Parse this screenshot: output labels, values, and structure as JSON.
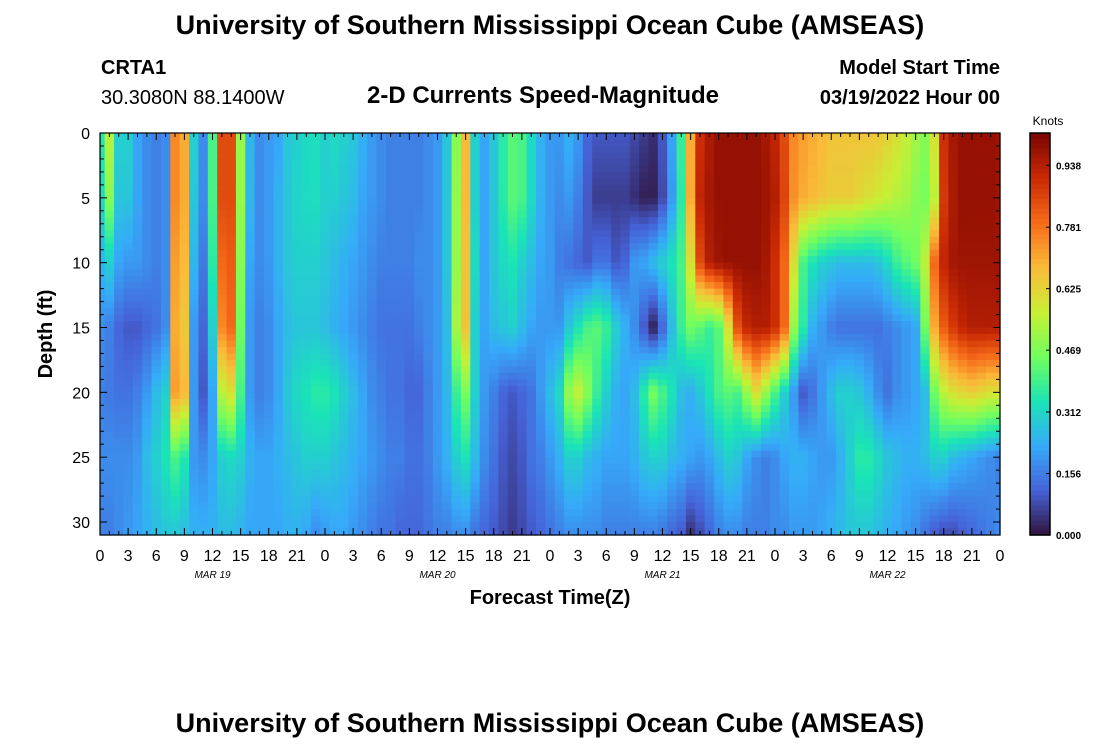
{
  "page": {
    "title": "University of Southern Mississippi Ocean Cube (AMSEAS)",
    "title_repeat": "University of Southern Mississippi Ocean Cube (AMSEAS)"
  },
  "header": {
    "station": "CRTA1",
    "coords": "30.3080N  88.1400W",
    "subtitle": "2-D Currents Speed-Magnitude",
    "model_start_label": "Model Start Time",
    "model_start_time": "03/19/2022 Hour 00"
  },
  "colors": {
    "scale": [
      "#30123b",
      "#4662d7",
      "#36aaf9",
      "#1ae4b6",
      "#72fe5e",
      "#c8ef34",
      "#faba39",
      "#f66b19",
      "#ca2a04",
      "#7a0403"
    ]
  },
  "chart_data": {
    "type": "heatmap",
    "title": "2-D Currents Speed-Magnitude",
    "xlabel": "Forecast Time(Z)",
    "ylabel": "Depth (ft)",
    "x_hours_range": [
      0,
      96
    ],
    "ylim": [
      0,
      31
    ],
    "x_tick_labels": [
      "0",
      "3",
      "6",
      "9",
      "12",
      "15",
      "18",
      "21",
      "0",
      "3",
      "6",
      "9",
      "12",
      "15",
      "18",
      "21",
      "0",
      "3",
      "6",
      "9",
      "12",
      "15",
      "18",
      "21",
      "0",
      "3",
      "6",
      "9",
      "12",
      "15",
      "18",
      "21",
      "0"
    ],
    "y_ticks": [
      0,
      5,
      10,
      15,
      20,
      25,
      30
    ],
    "y_tick_labels": [
      "0",
      "5",
      "10",
      "15",
      "20",
      "25",
      "30"
    ],
    "day_labels": [
      {
        "hour": 12,
        "label": "MAR 19"
      },
      {
        "hour": 36,
        "label": "MAR 20"
      },
      {
        "hour": 60,
        "label": "MAR 21"
      },
      {
        "hour": 84,
        "label": "MAR 22"
      }
    ],
    "colorbar": {
      "unit": "Knots",
      "range": [
        0.0,
        1.02
      ],
      "tick_values": [
        0.0,
        0.156,
        0.312,
        0.469,
        0.625,
        0.781,
        0.938
      ],
      "tick_labels": [
        "0.000",
        "0.156",
        "0.312",
        "0.469",
        "0.625",
        "0.781",
        "0.938"
      ]
    },
    "depths": [
      0,
      5,
      10,
      15,
      20,
      25,
      31
    ],
    "hours": [
      0,
      1,
      2,
      3,
      4,
      5,
      6,
      7,
      8,
      9,
      10,
      11,
      12,
      13,
      14,
      15,
      16,
      17,
      18,
      19,
      20,
      21,
      22,
      23,
      24,
      25,
      26,
      27,
      28,
      29,
      30,
      31,
      32,
      33,
      34,
      35,
      36,
      37,
      38,
      39,
      40,
      41,
      42,
      43,
      44,
      45,
      46,
      47,
      48,
      49,
      50,
      51,
      52,
      53,
      54,
      55,
      56,
      57,
      58,
      59,
      60,
      61,
      62,
      63,
      64,
      65,
      66,
      67,
      68,
      69,
      70,
      71,
      72,
      73,
      74,
      75,
      76,
      77,
      78,
      79,
      80,
      81,
      82,
      83,
      84,
      85,
      86,
      87,
      88,
      89,
      90,
      91,
      92,
      93,
      94,
      95,
      96
    ],
    "values": [
      [
        0.36,
        0.55,
        0.3,
        0.3,
        0.22,
        0.18,
        0.16,
        0.18,
        0.75,
        0.7,
        0.3,
        0.18,
        0.4,
        0.85,
        0.85,
        0.5,
        0.25,
        0.18,
        0.2,
        0.22,
        0.28,
        0.3,
        0.32,
        0.33,
        0.3,
        0.32,
        0.3,
        0.28,
        0.24,
        0.2,
        0.18,
        0.16,
        0.16,
        0.16,
        0.16,
        0.18,
        0.2,
        0.28,
        0.48,
        0.68,
        0.3,
        0.22,
        0.28,
        0.36,
        0.42,
        0.4,
        0.32,
        0.24,
        0.2,
        0.2,
        0.24,
        0.2,
        0.12,
        0.1,
        0.1,
        0.1,
        0.1,
        0.08,
        0.06,
        0.04,
        0.1,
        0.22,
        0.38,
        0.7,
        0.9,
        0.95,
        0.98,
        0.98,
        0.98,
        0.98,
        0.98,
        0.96,
        0.92,
        0.85,
        0.75,
        0.72,
        0.7,
        0.68,
        0.66,
        0.66,
        0.66,
        0.66,
        0.66,
        0.65,
        0.63,
        0.6,
        0.56,
        0.52,
        0.48,
        0.6,
        0.9,
        0.96,
        0.98,
        0.98,
        0.98,
        0.98,
        0.97
      ],
      [
        0.32,
        0.48,
        0.28,
        0.28,
        0.22,
        0.18,
        0.16,
        0.18,
        0.75,
        0.7,
        0.28,
        0.18,
        0.4,
        0.85,
        0.85,
        0.5,
        0.25,
        0.18,
        0.2,
        0.24,
        0.28,
        0.31,
        0.32,
        0.33,
        0.3,
        0.3,
        0.28,
        0.26,
        0.22,
        0.2,
        0.18,
        0.16,
        0.16,
        0.16,
        0.16,
        0.18,
        0.2,
        0.28,
        0.5,
        0.68,
        0.3,
        0.22,
        0.28,
        0.36,
        0.42,
        0.4,
        0.32,
        0.24,
        0.2,
        0.18,
        0.2,
        0.16,
        0.1,
        0.06,
        0.06,
        0.06,
        0.06,
        0.04,
        0.02,
        0.02,
        0.08,
        0.2,
        0.36,
        0.7,
        0.92,
        0.96,
        0.98,
        0.98,
        0.98,
        0.98,
        0.98,
        0.97,
        0.94,
        0.86,
        0.74,
        0.7,
        0.68,
        0.66,
        0.64,
        0.64,
        0.64,
        0.62,
        0.6,
        0.58,
        0.56,
        0.54,
        0.52,
        0.48,
        0.46,
        0.55,
        0.88,
        0.95,
        0.98,
        0.98,
        0.98,
        0.98,
        0.97
      ],
      [
        0.25,
        0.3,
        0.22,
        0.2,
        0.2,
        0.18,
        0.16,
        0.18,
        0.72,
        0.68,
        0.25,
        0.15,
        0.36,
        0.8,
        0.82,
        0.48,
        0.22,
        0.18,
        0.2,
        0.24,
        0.28,
        0.3,
        0.3,
        0.3,
        0.28,
        0.26,
        0.24,
        0.22,
        0.2,
        0.18,
        0.16,
        0.16,
        0.16,
        0.16,
        0.18,
        0.18,
        0.2,
        0.28,
        0.5,
        0.66,
        0.32,
        0.22,
        0.28,
        0.32,
        0.34,
        0.3,
        0.26,
        0.22,
        0.2,
        0.16,
        0.14,
        0.12,
        0.1,
        0.14,
        0.14,
        0.1,
        0.12,
        0.2,
        0.22,
        0.26,
        0.3,
        0.34,
        0.4,
        0.6,
        0.85,
        0.94,
        0.97,
        0.98,
        0.98,
        0.98,
        0.98,
        0.96,
        0.9,
        0.8,
        0.6,
        0.4,
        0.34,
        0.3,
        0.28,
        0.26,
        0.26,
        0.26,
        0.26,
        0.28,
        0.32,
        0.38,
        0.42,
        0.45,
        0.55,
        0.8,
        0.92,
        0.96,
        0.97,
        0.97,
        0.97,
        0.97,
        0.97
      ],
      [
        0.18,
        0.16,
        0.12,
        0.1,
        0.1,
        0.12,
        0.14,
        0.18,
        0.7,
        0.65,
        0.2,
        0.12,
        0.3,
        0.75,
        0.8,
        0.45,
        0.2,
        0.16,
        0.18,
        0.22,
        0.26,
        0.28,
        0.28,
        0.28,
        0.26,
        0.24,
        0.22,
        0.2,
        0.18,
        0.16,
        0.14,
        0.14,
        0.14,
        0.14,
        0.16,
        0.18,
        0.2,
        0.26,
        0.52,
        0.66,
        0.3,
        0.22,
        0.26,
        0.28,
        0.3,
        0.26,
        0.22,
        0.2,
        0.2,
        0.2,
        0.28,
        0.34,
        0.4,
        0.42,
        0.38,
        0.3,
        0.24,
        0.18,
        0.1,
        0.02,
        0.12,
        0.26,
        0.38,
        0.45,
        0.42,
        0.38,
        0.42,
        0.6,
        0.84,
        0.92,
        0.94,
        0.94,
        0.9,
        0.8,
        0.5,
        0.36,
        0.24,
        0.2,
        0.16,
        0.14,
        0.14,
        0.14,
        0.14,
        0.14,
        0.16,
        0.18,
        0.2,
        0.22,
        0.45,
        0.7,
        0.82,
        0.88,
        0.92,
        0.94,
        0.94,
        0.94,
        0.94
      ],
      [
        0.16,
        0.15,
        0.14,
        0.14,
        0.16,
        0.2,
        0.26,
        0.3,
        0.72,
        0.68,
        0.2,
        0.1,
        0.22,
        0.55,
        0.6,
        0.4,
        0.2,
        0.16,
        0.18,
        0.22,
        0.28,
        0.32,
        0.34,
        0.36,
        0.36,
        0.34,
        0.3,
        0.26,
        0.22,
        0.18,
        0.16,
        0.14,
        0.14,
        0.12,
        0.12,
        0.16,
        0.2,
        0.25,
        0.38,
        0.46,
        0.3,
        0.2,
        0.16,
        0.12,
        0.1,
        0.12,
        0.14,
        0.2,
        0.26,
        0.32,
        0.5,
        0.56,
        0.48,
        0.38,
        0.3,
        0.24,
        0.22,
        0.26,
        0.36,
        0.46,
        0.4,
        0.34,
        0.26,
        0.24,
        0.28,
        0.34,
        0.4,
        0.42,
        0.4,
        0.5,
        0.6,
        0.5,
        0.4,
        0.3,
        0.2,
        0.1,
        0.14,
        0.2,
        0.26,
        0.3,
        0.3,
        0.28,
        0.24,
        0.18,
        0.14,
        0.18,
        0.2,
        0.22,
        0.26,
        0.45,
        0.55,
        0.6,
        0.62,
        0.64,
        0.62,
        0.6,
        0.6
      ],
      [
        0.18,
        0.18,
        0.18,
        0.18,
        0.2,
        0.26,
        0.3,
        0.34,
        0.4,
        0.35,
        0.2,
        0.18,
        0.22,
        0.3,
        0.32,
        0.3,
        0.24,
        0.22,
        0.22,
        0.24,
        0.26,
        0.28,
        0.3,
        0.3,
        0.3,
        0.28,
        0.26,
        0.24,
        0.22,
        0.2,
        0.18,
        0.16,
        0.16,
        0.14,
        0.14,
        0.16,
        0.2,
        0.24,
        0.3,
        0.34,
        0.26,
        0.18,
        0.14,
        0.1,
        0.08,
        0.1,
        0.14,
        0.16,
        0.2,
        0.24,
        0.3,
        0.3,
        0.26,
        0.24,
        0.22,
        0.22,
        0.22,
        0.24,
        0.28,
        0.3,
        0.3,
        0.26,
        0.24,
        0.22,
        0.2,
        0.22,
        0.26,
        0.3,
        0.28,
        0.22,
        0.18,
        0.16,
        0.18,
        0.22,
        0.24,
        0.24,
        0.22,
        0.2,
        0.2,
        0.24,
        0.3,
        0.36,
        0.36,
        0.32,
        0.28,
        0.26,
        0.24,
        0.24,
        0.26,
        0.3,
        0.3,
        0.26,
        0.24,
        0.22,
        0.2,
        0.18,
        0.16
      ],
      [
        0.16,
        0.16,
        0.18,
        0.2,
        0.22,
        0.24,
        0.26,
        0.28,
        0.28,
        0.26,
        0.24,
        0.24,
        0.24,
        0.26,
        0.26,
        0.24,
        0.22,
        0.22,
        0.22,
        0.22,
        0.24,
        0.24,
        0.22,
        0.18,
        0.2,
        0.22,
        0.22,
        0.2,
        0.18,
        0.16,
        0.14,
        0.14,
        0.12,
        0.12,
        0.12,
        0.14,
        0.16,
        0.16,
        0.18,
        0.18,
        0.14,
        0.12,
        0.1,
        0.08,
        0.06,
        0.08,
        0.1,
        0.12,
        0.14,
        0.16,
        0.18,
        0.18,
        0.18,
        0.18,
        0.16,
        0.16,
        0.16,
        0.16,
        0.16,
        0.16,
        0.14,
        0.12,
        0.1,
        0.04,
        0.08,
        0.12,
        0.16,
        0.18,
        0.18,
        0.16,
        0.16,
        0.16,
        0.18,
        0.18,
        0.2,
        0.2,
        0.2,
        0.22,
        0.24,
        0.26,
        0.28,
        0.28,
        0.28,
        0.26,
        0.24,
        0.22,
        0.2,
        0.18,
        0.14,
        0.1,
        0.08,
        0.08,
        0.1,
        0.12,
        0.14,
        0.16,
        0.18
      ]
    ]
  }
}
